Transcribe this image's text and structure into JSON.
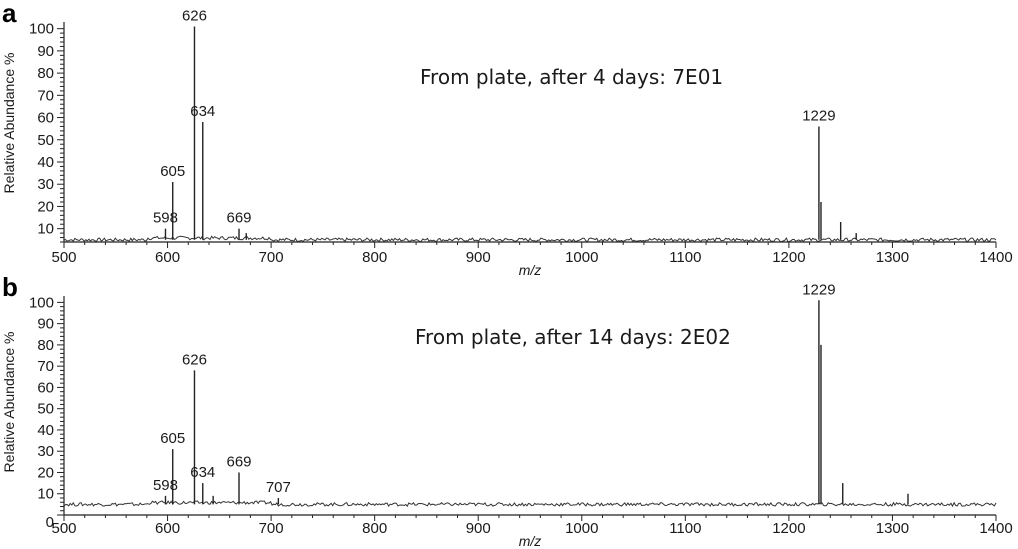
{
  "chart_data": [
    {
      "type": "line",
      "panel": "a",
      "annotation": "From plate, after 4 days: 7E01",
      "xlabel": "m/z",
      "ylabel": "Relative Abundance %",
      "xlim": [
        500,
        1400
      ],
      "ylim": [
        4,
        103
      ],
      "xticks": [
        "500",
        "600",
        "700",
        "800",
        "900",
        "1000",
        "1100",
        "1200",
        "1300",
        "1400"
      ],
      "yticks": [
        "10",
        "20",
        "30",
        "40",
        "50",
        "60",
        "70",
        "80",
        "90",
        "100"
      ],
      "y_zero_label": "",
      "baseline": 5,
      "peaks": [
        {
          "x": 598,
          "y": 10,
          "label": "598"
        },
        {
          "x": 605,
          "y": 31,
          "label": "605"
        },
        {
          "x": 626,
          "y": 101,
          "label": "626"
        },
        {
          "x": 634,
          "y": 58,
          "label": "634"
        },
        {
          "x": 669,
          "y": 10,
          "label": "669"
        },
        {
          "x": 676,
          "y": 8,
          "label": ""
        },
        {
          "x": 1229,
          "y": 56,
          "label": "1229"
        },
        {
          "x": 1231,
          "y": 22,
          "label": ""
        },
        {
          "x": 1250,
          "y": 13,
          "label": ""
        },
        {
          "x": 1265,
          "y": 8,
          "label": ""
        }
      ]
    },
    {
      "type": "line",
      "panel": "b",
      "annotation": "From plate, after 14 days: 2E02",
      "xlabel": "m/z",
      "ylabel": "Relative Abundance %",
      "xlim": [
        500,
        1400
      ],
      "ylim": [
        0,
        103
      ],
      "xticks": [
        "500",
        "600",
        "700",
        "800",
        "900",
        "1000",
        "1100",
        "1200",
        "1300",
        "1400"
      ],
      "yticks": [
        "10",
        "20",
        "30",
        "40",
        "50",
        "60",
        "70",
        "80",
        "90",
        "100"
      ],
      "y_zero_label": "0",
      "baseline": 5,
      "peaks": [
        {
          "x": 598,
          "y": 9,
          "label": "598"
        },
        {
          "x": 605,
          "y": 31,
          "label": "605"
        },
        {
          "x": 626,
          "y": 68,
          "label": "626"
        },
        {
          "x": 634,
          "y": 15,
          "label": "634"
        },
        {
          "x": 644,
          "y": 9,
          "label": ""
        },
        {
          "x": 669,
          "y": 20,
          "label": "669"
        },
        {
          "x": 707,
          "y": 8,
          "label": "707"
        },
        {
          "x": 1229,
          "y": 101,
          "label": "1229"
        },
        {
          "x": 1231,
          "y": 80,
          "label": ""
        },
        {
          "x": 1252,
          "y": 15,
          "label": ""
        },
        {
          "x": 1315,
          "y": 10,
          "label": ""
        }
      ]
    }
  ]
}
